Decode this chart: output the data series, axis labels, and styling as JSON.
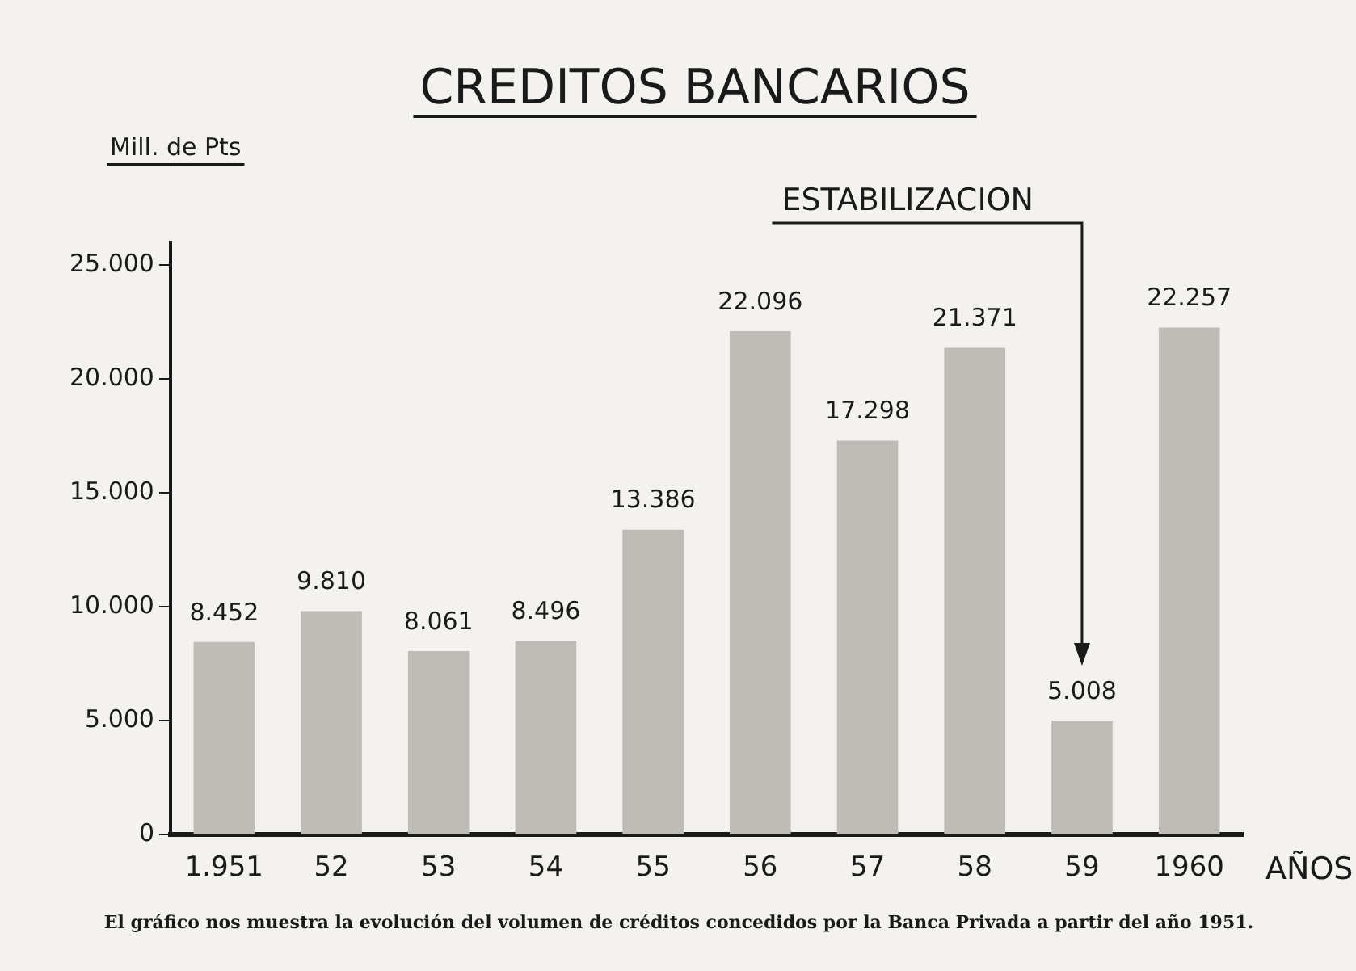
{
  "chart_data": {
    "type": "bar",
    "title": "CREDITOS BANCARIOS",
    "ylabel": "Mill. de Pts",
    "xlabel": "AÑOS",
    "categories": [
      "1.951",
      "52",
      "53",
      "54",
      "55",
      "56",
      "57",
      "58",
      "59",
      "1960"
    ],
    "values": [
      8452,
      9810,
      8061,
      8496,
      13386,
      22096,
      17298,
      21371,
      5008,
      22257
    ],
    "value_labels": [
      "8.452",
      "9.810",
      "8.061",
      "8.496",
      "13.386",
      "22.096",
      "17.298",
      "21.371",
      "5.008",
      "22.257"
    ],
    "color": "#bebcb6",
    "ylim": [
      0,
      26000
    ],
    "yticks": [
      0,
      {
        "value": 5000,
        "label": "5.000"
      },
      {
        "value": 10000,
        "label": "10.000"
      },
      {
        "value": 15000,
        "label": "15.000"
      },
      {
        "value": 20000,
        "label": "20.000"
      },
      {
        "value": 25000,
        "label": "25.000"
      }
    ],
    "grid": false,
    "legend": false,
    "annotations": [
      "ESTABILIZACION",
      "El gráfico nos muestra la evolución del volumen de créditos concedidos por la Banca Privada a partir del año 1951."
    ]
  }
}
